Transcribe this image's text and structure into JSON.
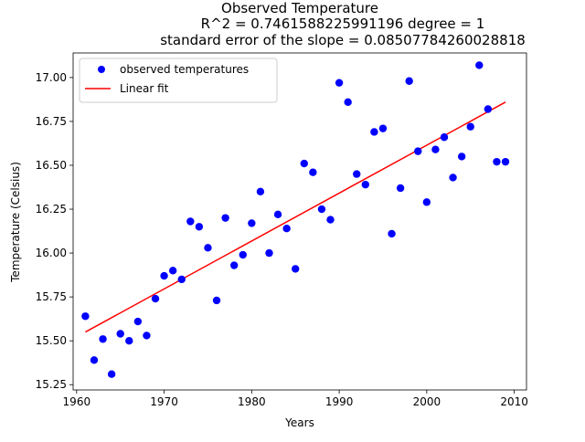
{
  "chart_data": {
    "type": "scatter",
    "title_lines": [
      "Observed Temperature",
      "R^2 = 0.7461588225991196 degree = 1",
      "standard error of the slope = 0.08507784260028818"
    ],
    "xlabel": "Years",
    "ylabel": "Temperature (Celsius)",
    "xlim": [
      1959.6,
      2011.4
    ],
    "ylim": [
      15.22,
      17.14
    ],
    "xticks": [
      1960,
      1970,
      1980,
      1990,
      2000,
      2010
    ],
    "yticks": [
      15.25,
      15.5,
      15.75,
      16.0,
      16.25,
      16.5,
      16.75,
      17.0
    ],
    "ytick_labels": [
      "15.25",
      "15.50",
      "15.75",
      "16.00",
      "16.25",
      "16.50",
      "16.75",
      "17.00"
    ],
    "legend": {
      "placement": "top-left",
      "entries": [
        {
          "label": "observed temperatures",
          "marker": "circle"
        },
        {
          "label": "Linear fit",
          "marker": "line"
        }
      ]
    },
    "colors": {
      "points": "#0000ff",
      "fit": "#ff0000"
    },
    "series": [
      {
        "name": "observed temperatures",
        "x": [
          1961,
          1962,
          1963,
          1964,
          1965,
          1966,
          1967,
          1968,
          1969,
          1970,
          1971,
          1972,
          1973,
          1974,
          1975,
          1976,
          1977,
          1978,
          1979,
          1980,
          1981,
          1982,
          1983,
          1984,
          1985,
          1986,
          1987,
          1988,
          1989,
          1990,
          1991,
          1992,
          1993,
          1994,
          1995,
          1996,
          1997,
          1998,
          1999,
          2000,
          2001,
          2002,
          2003,
          2004,
          2005,
          2006,
          2007,
          2008,
          2009
        ],
        "y": [
          15.64,
          15.39,
          15.51,
          15.31,
          15.54,
          15.5,
          15.61,
          15.53,
          15.74,
          15.87,
          15.9,
          15.85,
          16.18,
          16.15,
          16.03,
          15.73,
          16.2,
          15.93,
          15.99,
          16.17,
          16.35,
          16.0,
          16.22,
          16.14,
          15.91,
          16.51,
          16.46,
          16.25,
          16.19,
          16.97,
          16.86,
          16.45,
          16.39,
          16.69,
          16.71,
          16.11,
          16.37,
          16.98,
          16.58,
          16.29,
          16.59,
          16.66,
          16.43,
          16.55,
          16.72,
          17.07,
          16.82,
          16.52,
          16.52
        ]
      },
      {
        "name": "Linear fit",
        "x": [
          1961,
          2009
        ],
        "y": [
          15.55,
          16.86
        ]
      }
    ]
  }
}
